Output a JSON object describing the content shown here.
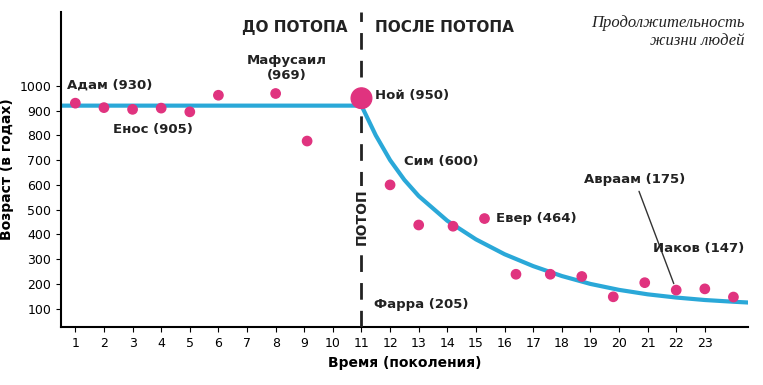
{
  "chart_data": {
    "type": "scatter",
    "title": "Продолжительность\nжизни людей",
    "x_label": "Время (поколения)",
    "y_label": "Возраст (в годах)",
    "xlim": [
      0.5,
      24.5
    ],
    "ylim": [
      25,
      1300
    ],
    "xticks": [
      1,
      2,
      3,
      4,
      5,
      6,
      7,
      8,
      9,
      10,
      11,
      12,
      13,
      14,
      15,
      16,
      17,
      18,
      19,
      20,
      21,
      22,
      23
    ],
    "yticks": [
      100,
      200,
      300,
      400,
      500,
      600,
      700,
      800,
      900,
      1000
    ],
    "grid": false,
    "flood": {
      "x": 11,
      "label": "ПОТОП",
      "before": "ДО ПОТОПА",
      "after": "ПОСЛЕ ПОТОПА"
    },
    "series": [
      {
        "type": "scatter",
        "color": "#e0337f",
        "marker": "circle",
        "x": [
          1,
          2,
          3,
          4,
          5,
          6,
          8,
          9.1,
          11,
          12,
          13,
          14.2,
          15.3,
          16.4,
          17.6,
          18.7,
          19.8,
          20.9,
          22,
          23,
          24
        ],
        "values": [
          930,
          912,
          905,
          910,
          895,
          962,
          969,
          777,
          950,
          600,
          438,
          433,
          464,
          239,
          239,
          230,
          148,
          205,
          175,
          180,
          147
        ],
        "labels": [
          "Адам (930)",
          null,
          "Енос (905)",
          null,
          null,
          null,
          "Мафусаил\n(969)",
          null,
          "Ной (950)",
          "Сим (600)",
          null,
          null,
          "Евер (464)",
          null,
          null,
          null,
          null,
          "Фарра (205)",
          "Авраам (175)",
          null,
          "Иаков (147)"
        ]
      },
      {
        "type": "line",
        "color": "#2aa8d8",
        "line_style": "solid",
        "x": [
          0.5,
          11,
          11.5,
          12,
          12.5,
          13,
          14,
          15,
          16,
          17,
          18,
          19,
          20,
          21,
          22,
          23,
          24,
          24.5
        ],
        "values": [
          920,
          920,
          800,
          700,
          620,
          555,
          455,
          380,
          320,
          272,
          232,
          200,
          176,
          158,
          145,
          135,
          128,
          125
        ]
      }
    ]
  }
}
